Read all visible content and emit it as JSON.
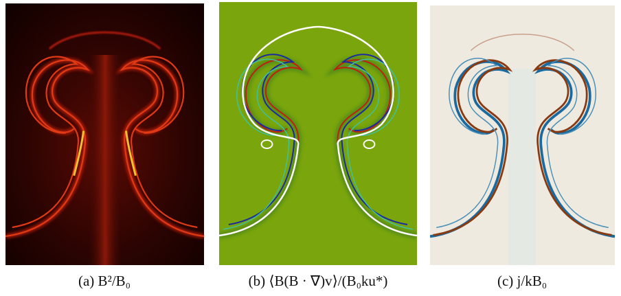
{
  "captions": [
    "(a) B²/B₀",
    "(b) ⟨B(B · ∇)v⟩/(B₀ku*)",
    "(c) j/kB₀"
  ]
}
